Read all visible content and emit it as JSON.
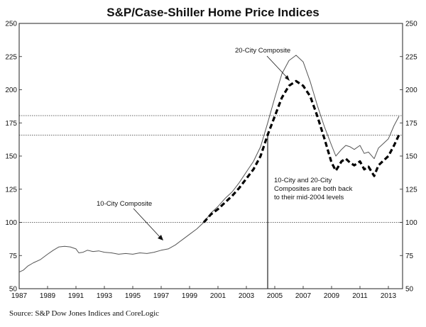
{
  "chart_data": {
    "type": "line",
    "title": "S&P/Case-Shiller Home Price Indices",
    "xlim": [
      1987,
      2014
    ],
    "ylim": [
      50,
      250
    ],
    "y_ticks": [
      50,
      75,
      100,
      125,
      150,
      175,
      200,
      225,
      250
    ],
    "x_ticks": [
      1987,
      1989,
      1991,
      1993,
      1995,
      1997,
      1999,
      2001,
      2003,
      2005,
      2007,
      2009,
      2011,
      2013
    ],
    "y_tick_labels_both_sides": true,
    "grid": false,
    "reference_lines": [
      {
        "y": 180.5,
        "style": "dotted"
      },
      {
        "y": 165.7,
        "style": "dotted"
      },
      {
        "y": 100,
        "style": "dotted"
      }
    ],
    "marker_line": {
      "x": 2004.5,
      "y_bottom": 50,
      "y_top": 167
    },
    "series": [
      {
        "name": "10-City Composite",
        "style": "thin-solid",
        "color": "#555555",
        "points": [
          [
            1987.0,
            62.5
          ],
          [
            1987.3,
            64
          ],
          [
            1987.6,
            67
          ],
          [
            1988.0,
            69.5
          ],
          [
            1988.5,
            72
          ],
          [
            1989.0,
            76
          ],
          [
            1989.4,
            79
          ],
          [
            1989.8,
            81.5
          ],
          [
            1990.2,
            82
          ],
          [
            1990.6,
            81.5
          ],
          [
            1991.0,
            80
          ],
          [
            1991.2,
            77
          ],
          [
            1991.5,
            77.5
          ],
          [
            1991.8,
            79
          ],
          [
            1992.2,
            78
          ],
          [
            1992.6,
            78.5
          ],
          [
            1993.0,
            77.5
          ],
          [
            1993.5,
            77
          ],
          [
            1994.0,
            76
          ],
          [
            1994.5,
            76.5
          ],
          [
            1995.0,
            76
          ],
          [
            1995.5,
            77
          ],
          [
            1996.0,
            76.5
          ],
          [
            1996.5,
            77.5
          ],
          [
            1997.0,
            79
          ],
          [
            1997.5,
            80
          ],
          [
            1998.0,
            83
          ],
          [
            1998.5,
            87
          ],
          [
            1999.0,
            91
          ],
          [
            1999.5,
            95
          ],
          [
            2000.0,
            100
          ],
          [
            2000.5,
            107
          ],
          [
            2001.0,
            112
          ],
          [
            2001.5,
            118
          ],
          [
            2002.0,
            123
          ],
          [
            2002.5,
            130
          ],
          [
            2003.0,
            138
          ],
          [
            2003.5,
            146
          ],
          [
            2004.0,
            157
          ],
          [
            2004.5,
            175
          ],
          [
            2005.0,
            194
          ],
          [
            2005.5,
            212
          ],
          [
            2006.0,
            222
          ],
          [
            2006.5,
            226
          ],
          [
            2007.0,
            221
          ],
          [
            2007.5,
            206
          ],
          [
            2008.0,
            188
          ],
          [
            2008.5,
            172
          ],
          [
            2009.0,
            158
          ],
          [
            2009.3,
            150
          ],
          [
            2009.7,
            155
          ],
          [
            2010.0,
            158
          ],
          [
            2010.3,
            157
          ],
          [
            2010.6,
            155
          ],
          [
            2011.0,
            158
          ],
          [
            2011.3,
            152
          ],
          [
            2011.6,
            153
          ],
          [
            2012.0,
            148
          ],
          [
            2012.3,
            156
          ],
          [
            2012.6,
            159
          ],
          [
            2013.0,
            163
          ],
          [
            2013.4,
            173
          ],
          [
            2013.75,
            180
          ]
        ]
      },
      {
        "name": "20-City Composite",
        "style": "thick-dashed",
        "color": "#000000",
        "points": [
          [
            2000.0,
            100
          ],
          [
            2000.5,
            106
          ],
          [
            2001.0,
            110
          ],
          [
            2001.5,
            115
          ],
          [
            2002.0,
            120
          ],
          [
            2002.5,
            126
          ],
          [
            2003.0,
            133
          ],
          [
            2003.5,
            140
          ],
          [
            2004.0,
            150
          ],
          [
            2004.5,
            166
          ],
          [
            2005.0,
            180
          ],
          [
            2005.5,
            194
          ],
          [
            2006.0,
            203
          ],
          [
            2006.5,
            206.5
          ],
          [
            2007.0,
            203
          ],
          [
            2007.5,
            195
          ],
          [
            2008.0,
            180
          ],
          [
            2008.5,
            163
          ],
          [
            2009.0,
            145
          ],
          [
            2009.3,
            139
          ],
          [
            2009.7,
            146
          ],
          [
            2010.0,
            148
          ],
          [
            2010.3,
            145
          ],
          [
            2010.6,
            143
          ],
          [
            2011.0,
            146
          ],
          [
            2011.3,
            140
          ],
          [
            2011.6,
            142
          ],
          [
            2012.0,
            135
          ],
          [
            2012.3,
            143
          ],
          [
            2012.6,
            146
          ],
          [
            2013.0,
            150
          ],
          [
            2013.4,
            158
          ],
          [
            2013.75,
            166
          ]
        ]
      }
    ],
    "annotations": [
      {
        "text": "20-City Composite",
        "arrow_to": [
          2006.3,
          211
        ]
      },
      {
        "text": "10-City Composite",
        "arrow_to": [
          1997.0,
          78
        ]
      },
      {
        "lines": [
          "10-City and 20-City",
          "Composites are both back",
          "to their mid-2004 levels"
        ]
      }
    ],
    "source": "Source:  S&P Dow Jones Indices and CoreLogic"
  }
}
